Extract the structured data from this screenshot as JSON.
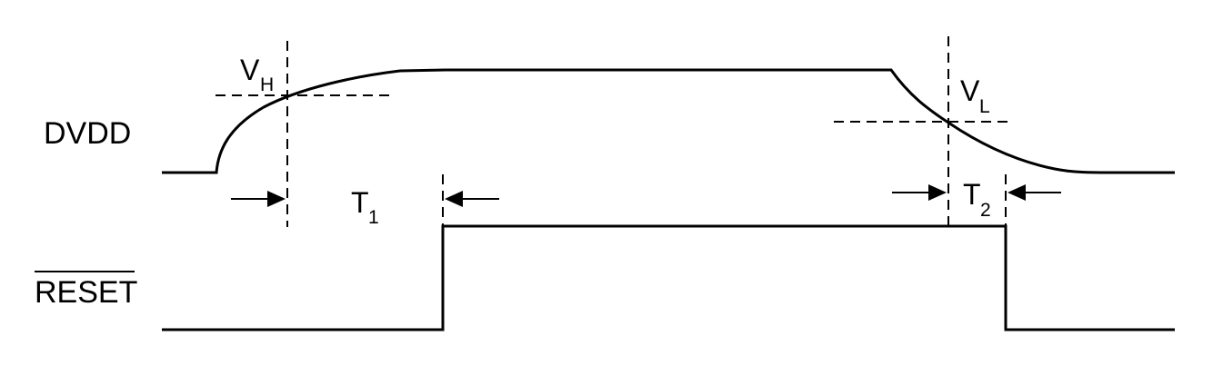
{
  "signals": {
    "dvdd": "DVDD",
    "reset": "RESET"
  },
  "thresholds": {
    "vh_main": "V",
    "vh_sub": "H",
    "vl_main": "V",
    "vl_sub": "L"
  },
  "timings": {
    "t1_main": "T",
    "t1_sub": "1",
    "t2_main": "T",
    "t2_sub": "2"
  }
}
